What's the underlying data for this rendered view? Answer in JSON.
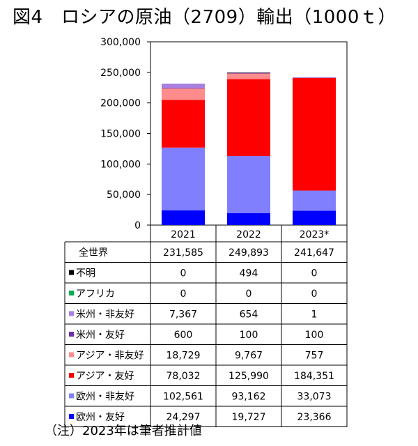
{
  "title": "図4　ロシアの原油（2709）輸出（1000ｔ）",
  "note": "（注）2023年は筆者推計値",
  "chart_data": {
    "type": "bar",
    "stacked": true,
    "categories": [
      "2021",
      "2022",
      "2023*"
    ],
    "ylim": [
      0,
      300000
    ],
    "yticks": [
      "0",
      "50,000",
      "100,000",
      "150,000",
      "200,000",
      "250,000",
      "300,000"
    ],
    "total_label": "全世界",
    "totals": [
      "231,585",
      "249,893",
      "241,647"
    ],
    "series": [
      {
        "name": "不明",
        "color": "#000000",
        "values": [
          0,
          494,
          0
        ],
        "labels": [
          "0",
          "494",
          "0"
        ]
      },
      {
        "name": "アフリカ",
        "color": "#00b050",
        "values": [
          0,
          0,
          0
        ],
        "labels": [
          "0",
          "0",
          "0"
        ]
      },
      {
        "name": "米州・非友好",
        "color": "#a97fe0",
        "values": [
          7367,
          654,
          1
        ],
        "labels": [
          "7,367",
          "654",
          "1"
        ]
      },
      {
        "name": "米州・友好",
        "color": "#7030a0",
        "values": [
          600,
          100,
          100
        ],
        "labels": [
          "600",
          "100",
          "100"
        ]
      },
      {
        "name": "アジア・非友好",
        "color": "#ff8c8c",
        "values": [
          18729,
          9767,
          757
        ],
        "labels": [
          "18,729",
          "9,767",
          "757"
        ]
      },
      {
        "name": "アジア・友好",
        "color": "#ff0000",
        "values": [
          78032,
          125990,
          184351
        ],
        "labels": [
          "78,032",
          "125,990",
          "184,351"
        ]
      },
      {
        "name": "欧州・非友好",
        "color": "#8080ff",
        "values": [
          102561,
          93162,
          33073
        ],
        "labels": [
          "102,561",
          "93,162",
          "33,073"
        ]
      },
      {
        "name": "欧州・友好",
        "color": "#0000ff",
        "values": [
          24297,
          19727,
          23366
        ],
        "labels": [
          "24,297",
          "19,727",
          "23,366"
        ]
      }
    ]
  }
}
